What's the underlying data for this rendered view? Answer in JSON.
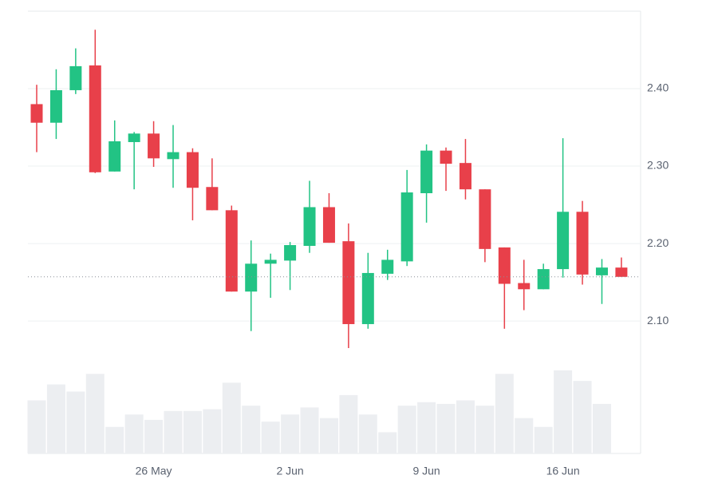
{
  "chart_data": {
    "type": "candlestick",
    "categories": [
      null,
      null,
      null,
      null,
      null,
      null,
      "26 May",
      null,
      null,
      null,
      null,
      null,
      null,
      "2 Jun",
      null,
      null,
      null,
      null,
      null,
      null,
      "9 Jun",
      null,
      null,
      null,
      null,
      null,
      null,
      "16 Jun",
      null,
      null,
      null
    ],
    "open": [
      2.38,
      2.356,
      2.398,
      2.43,
      2.293,
      2.331,
      2.342,
      2.309,
      2.318,
      2.273,
      2.243,
      2.138,
      2.174,
      2.178,
      2.197,
      2.247,
      2.203,
      2.096,
      2.161,
      2.177,
      2.265,
      2.32,
      2.304,
      2.27,
      2.195,
      2.149,
      2.141,
      2.167,
      2.241,
      2.159,
      2.169
    ],
    "high": [
      2.405,
      2.425,
      2.452,
      2.476,
      2.359,
      2.344,
      2.358,
      2.353,
      2.323,
      2.31,
      2.249,
      2.204,
      2.187,
      2.202,
      2.281,
      2.265,
      2.226,
      2.188,
      2.192,
      2.295,
      2.328,
      2.324,
      2.335,
      2.27,
      2.195,
      2.179,
      2.174,
      2.336,
      2.255,
      2.18,
      2.182
    ],
    "low": [
      2.318,
      2.335,
      2.393,
      2.291,
      2.293,
      2.27,
      2.299,
      2.272,
      2.23,
      2.243,
      2.138,
      2.087,
      2.13,
      2.14,
      2.188,
      2.201,
      2.065,
      2.09,
      2.153,
      2.171,
      2.227,
      2.268,
      2.257,
      2.176,
      2.09,
      2.114,
      2.141,
      2.156,
      2.147,
      2.122,
      2.157
    ],
    "close": [
      2.356,
      2.398,
      2.429,
      2.292,
      2.332,
      2.342,
      2.31,
      2.318,
      2.272,
      2.243,
      2.138,
      2.174,
      2.179,
      2.198,
      2.247,
      2.201,
      2.096,
      2.162,
      2.179,
      2.266,
      2.32,
      2.303,
      2.27,
      2.193,
      2.148,
      2.141,
      2.167,
      2.241,
      2.16,
      2.169,
      2.157
    ],
    "volume": [
      30,
      39,
      35,
      45,
      15,
      22,
      19,
      24,
      24,
      25,
      40,
      27,
      18,
      22,
      26,
      20,
      33,
      22,
      12,
      27,
      29,
      28,
      30,
      27,
      45,
      20,
      15,
      47,
      41,
      28,
      null
    ],
    "up_color": "#22c384",
    "down_color": "#e8404a",
    "volume_color": "#eceef1",
    "ylim": [
      1.929,
      2.5
    ],
    "yticks": [
      {
        "value": 2.1,
        "label": "2.10"
      },
      {
        "value": 2.2,
        "label": "2.20"
      },
      {
        "value": 2.3,
        "label": "2.30"
      },
      {
        "value": 2.4,
        "label": "2.40"
      }
    ],
    "volume_lim": [
      0,
      250
    ],
    "grid": true
  }
}
